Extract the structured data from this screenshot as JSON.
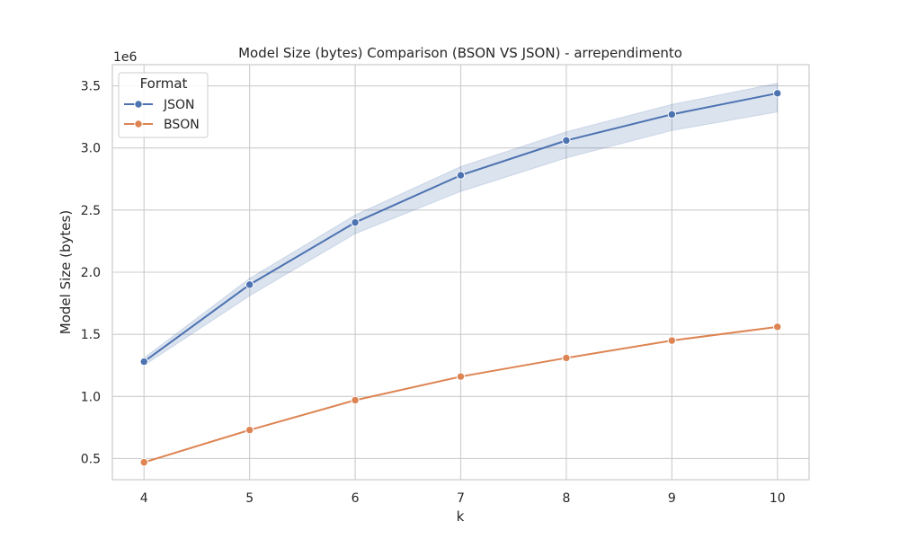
{
  "chart_data": {
    "type": "line",
    "title": "Model Size (bytes) Comparison (BSON VS JSON) - arrependimento",
    "xlabel": "k",
    "ylabel": "Model Size (bytes)",
    "y_scale_label": "1e6",
    "x": [
      4,
      5,
      6,
      7,
      8,
      9,
      10
    ],
    "xticks": [
      "4",
      "5",
      "6",
      "7",
      "8",
      "9",
      "10"
    ],
    "yticks": [
      {
        "value": 0.5,
        "label": "0.5"
      },
      {
        "value": 1.0,
        "label": "1.0"
      },
      {
        "value": 1.5,
        "label": "1.5"
      },
      {
        "value": 2.0,
        "label": "2.0"
      },
      {
        "value": 2.5,
        "label": "2.5"
      },
      {
        "value": 3.0,
        "label": "3.0"
      },
      {
        "value": 3.5,
        "label": "3.5"
      }
    ],
    "xlim": [
      3.7,
      10.3
    ],
    "ylim": [
      0.33,
      3.67
    ],
    "grid": true,
    "legend": {
      "title": "Format",
      "placement": "top-left"
    },
    "series": [
      {
        "name": "JSON",
        "color": "#4c72b0",
        "values": [
          1.28,
          1.9,
          2.4,
          2.78,
          3.06,
          3.27,
          3.44
        ],
        "ci_lower": [
          1.25,
          1.81,
          2.31,
          2.65,
          2.92,
          3.14,
          3.29
        ],
        "ci_upper": [
          1.31,
          1.95,
          2.46,
          2.85,
          3.13,
          3.35,
          3.52
        ]
      },
      {
        "name": "BSON",
        "color": "#dd8452",
        "values": [
          0.47,
          0.73,
          0.97,
          1.16,
          1.31,
          1.45,
          1.56
        ]
      }
    ]
  }
}
